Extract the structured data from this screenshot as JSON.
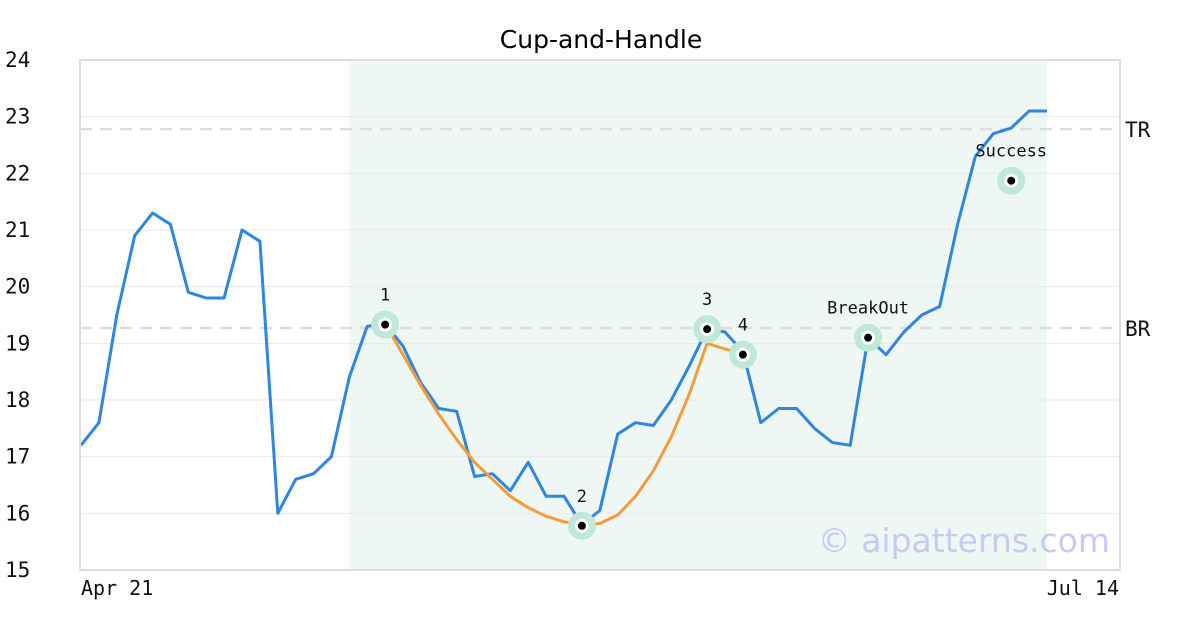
{
  "chart_data": {
    "type": "line",
    "title": "Cup-and-Handle",
    "xlabel": "",
    "ylabel": "",
    "ylim": [
      15,
      24
    ],
    "yticks": [
      15,
      16,
      17,
      18,
      19,
      20,
      21,
      22,
      23,
      24
    ],
    "xtick_labels": [
      "Apr 21",
      "Jul 14"
    ],
    "grid": true,
    "watermark": "© aipatterns.com",
    "colors": {
      "price": "#2e86de",
      "fit": "#f39c3c",
      "highlight": "#eef7f3",
      "marker_halo": "#bfe8d6",
      "level_line": "#dddddd"
    },
    "highlight_range": [
      15,
      54
    ],
    "series": [
      {
        "role": "price",
        "values": [
          17.2,
          17.6,
          19.5,
          20.9,
          21.3,
          21.1,
          19.9,
          19.8,
          19.8,
          21.0,
          20.8,
          16.0,
          16.6,
          16.7,
          17.0,
          18.4,
          19.3,
          19.35,
          18.95,
          18.3,
          17.85,
          17.8,
          16.65,
          16.7,
          16.4,
          16.9,
          16.3,
          16.3,
          15.8,
          16.05,
          17.4,
          17.6,
          17.55,
          18.0,
          18.6,
          19.25,
          19.2,
          18.85,
          17.6,
          17.85,
          17.85,
          17.5,
          17.25,
          17.2,
          19.1,
          18.8,
          19.2,
          19.5,
          19.65,
          21.1,
          22.3,
          22.7,
          22.8,
          23.1,
          23.1
        ]
      },
      {
        "role": "fit",
        "x_start": 17,
        "values": [
          19.35,
          18.8,
          18.25,
          17.75,
          17.3,
          16.9,
          16.6,
          16.3,
          16.1,
          15.95,
          15.85,
          15.8,
          15.82,
          15.97,
          16.3,
          16.75,
          17.35,
          18.1,
          19.0,
          18.9,
          18.82
        ]
      }
    ],
    "levels": [
      {
        "label": "TR",
        "y": 22.78
      },
      {
        "label": "BR",
        "y": 19.27
      }
    ],
    "points": [
      {
        "label": "1",
        "x": 17,
        "y": 19.33
      },
      {
        "label": "2",
        "x": 28,
        "y": 15.78
      },
      {
        "label": "3",
        "x": 35,
        "y": 19.25
      },
      {
        "label": "4",
        "x": 37,
        "y": 18.8
      },
      {
        "label": "BreakOut",
        "x": 44,
        "y": 19.1
      },
      {
        "label": "Success",
        "x": 52,
        "y": 21.87
      }
    ]
  }
}
